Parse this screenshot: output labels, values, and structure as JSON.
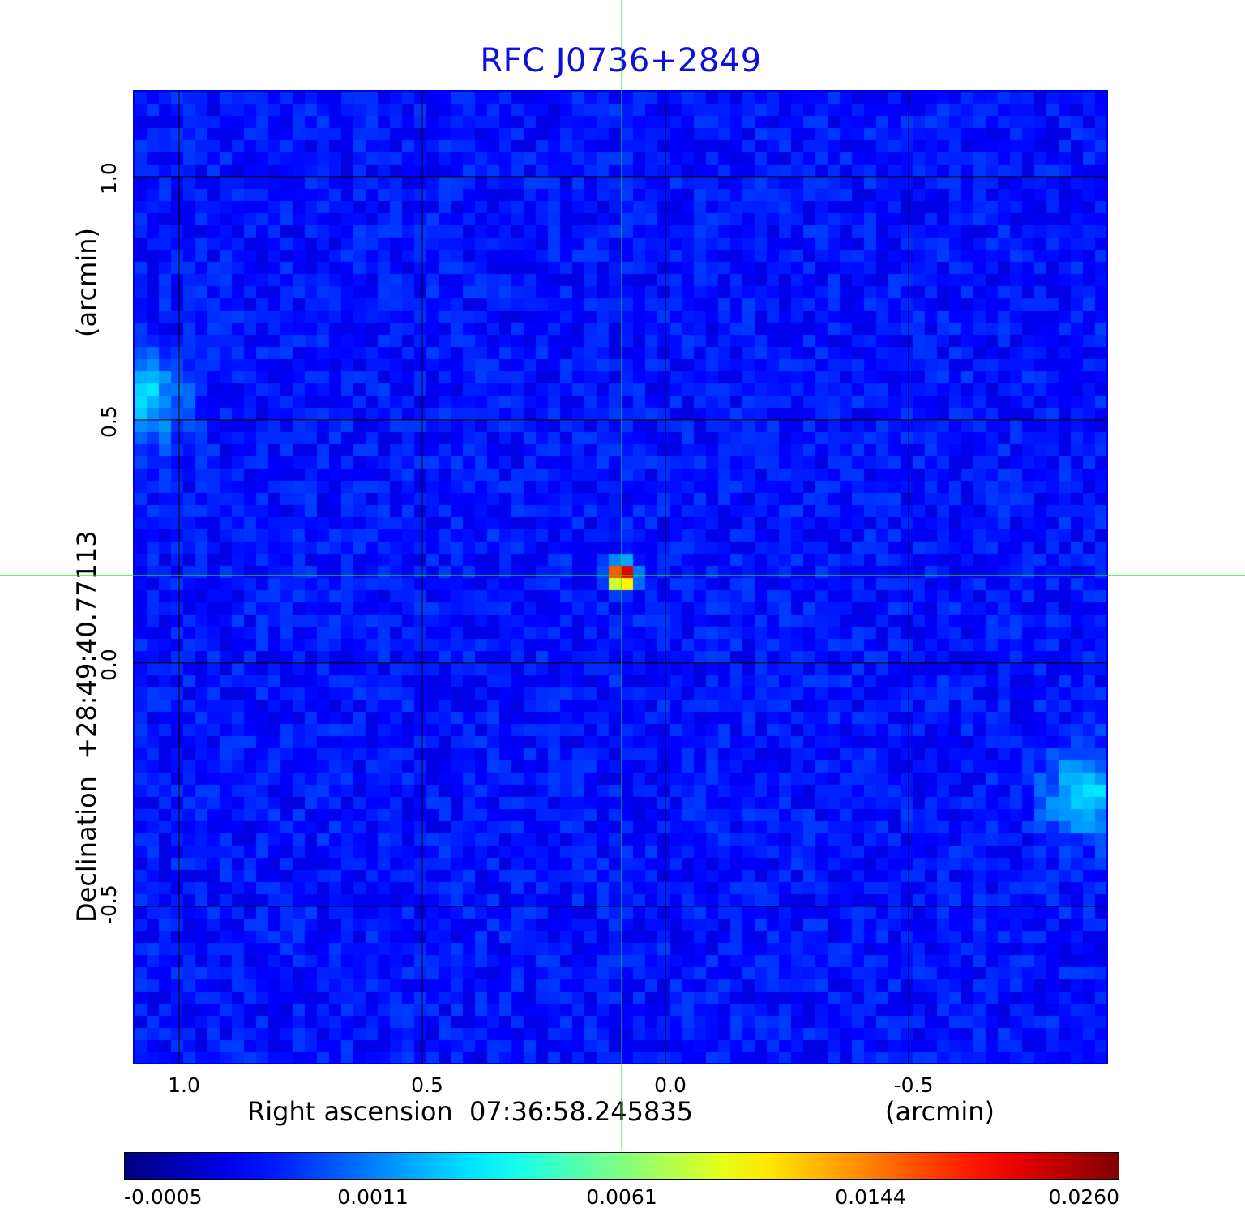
{
  "chart_data": {
    "type": "heatmap",
    "title": "RFC J0736+2849",
    "xlabel": "Right ascension  07:36:58.245835",
    "xunit": "(arcmin)",
    "ylabel": "Declination  +28:49:40.77113",
    "yunit": "(arcmin)",
    "xlim": [
      1.095,
      -0.91
    ],
    "ylim": [
      -0.825,
      1.178
    ],
    "x_ticks": [
      {
        "value": 1.0,
        "label": "1.0"
      },
      {
        "value": 0.5,
        "label": "0.5"
      },
      {
        "value": 0.0,
        "label": "0.0"
      },
      {
        "value": -0.5,
        "label": "-0.5"
      }
    ],
    "y_ticks": [
      {
        "value": 1.0,
        "label": "1.0"
      },
      {
        "value": 0.5,
        "label": "0.5"
      },
      {
        "value": 0.0,
        "label": "0.0"
      },
      {
        "value": -0.5,
        "label": "-0.5"
      }
    ],
    "grid": true,
    "crosshair": {
      "x": 0.09,
      "y": 0.18
    },
    "peak": {
      "x": 0.09,
      "y": 0.18,
      "value": 0.026
    },
    "secondary_features": [
      {
        "x": 1.08,
        "y": 0.54,
        "value": 0.0014
      },
      {
        "x": -0.87,
        "y": -0.27,
        "value": 0.0013
      }
    ],
    "colorbar": {
      "colormap": "jet",
      "ticks": [
        "-0.0005",
        "0.0011",
        "0.0061",
        "0.0144",
        "0.0260"
      ]
    },
    "colors": {
      "title": "#1010d8",
      "frame": "#0000e0",
      "grid": "#000000",
      "crosshair": "#00ee00"
    }
  }
}
